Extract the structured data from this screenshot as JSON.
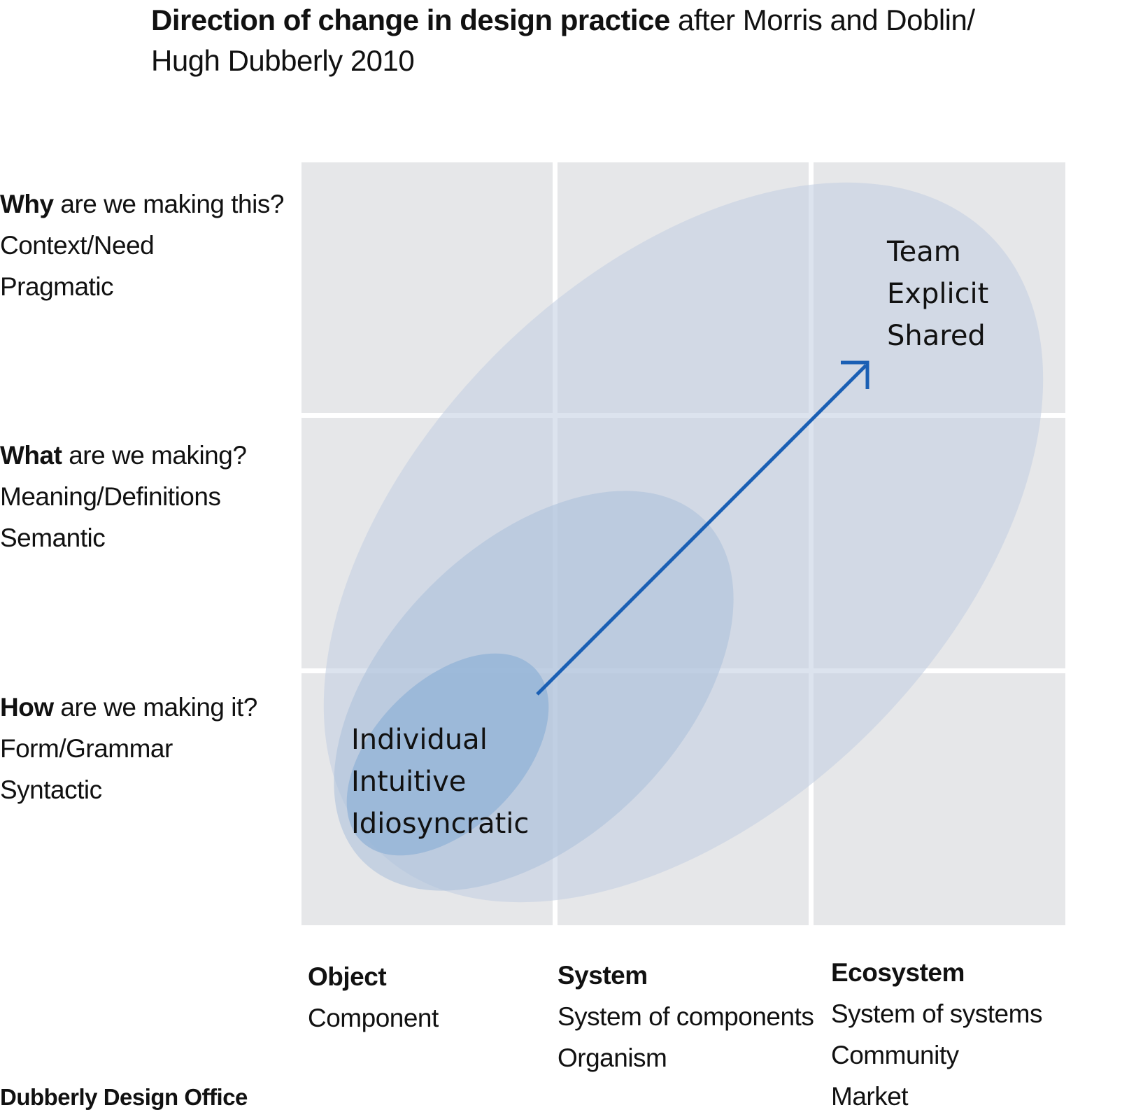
{
  "title": {
    "bold": "Direction of change in design practice",
    "rest_line1": " after Morris and Doblin/",
    "line2": "Hugh Dubberly 2010"
  },
  "rows": [
    {
      "q_bold": "Why",
      "q_rest": " are we making this?",
      "line2": "Context/Need",
      "line3": "Pragmatic"
    },
    {
      "q_bold": "What",
      "q_rest": " are we making?",
      "line2": "Meaning/Definitions",
      "line3": "Semantic"
    },
    {
      "q_bold": "How",
      "q_rest": " are we making it?",
      "line2": "Form/Grammar",
      "line3": "Syntactic"
    }
  ],
  "columns": [
    {
      "heading": "Object",
      "lines": [
        "Component"
      ]
    },
    {
      "heading": "System",
      "lines": [
        "System of components",
        "Organism"
      ]
    },
    {
      "heading": "Ecosystem",
      "lines": [
        "System of systems",
        "Community",
        "Market"
      ]
    }
  ],
  "start_labels": [
    "Individual",
    "Intuitive",
    "Idiosyncratic"
  ],
  "end_labels": [
    "Team",
    "Explicit",
    "Shared"
  ],
  "footer": "Dubberly Design Office",
  "colors": {
    "cell": "#e6e7e9",
    "ellipse_outer": "#c5d0e2",
    "ellipse_mid": "#a9bfda",
    "ellipse_inner": "#8fb0d6",
    "arrow": "#1a5fb4"
  }
}
